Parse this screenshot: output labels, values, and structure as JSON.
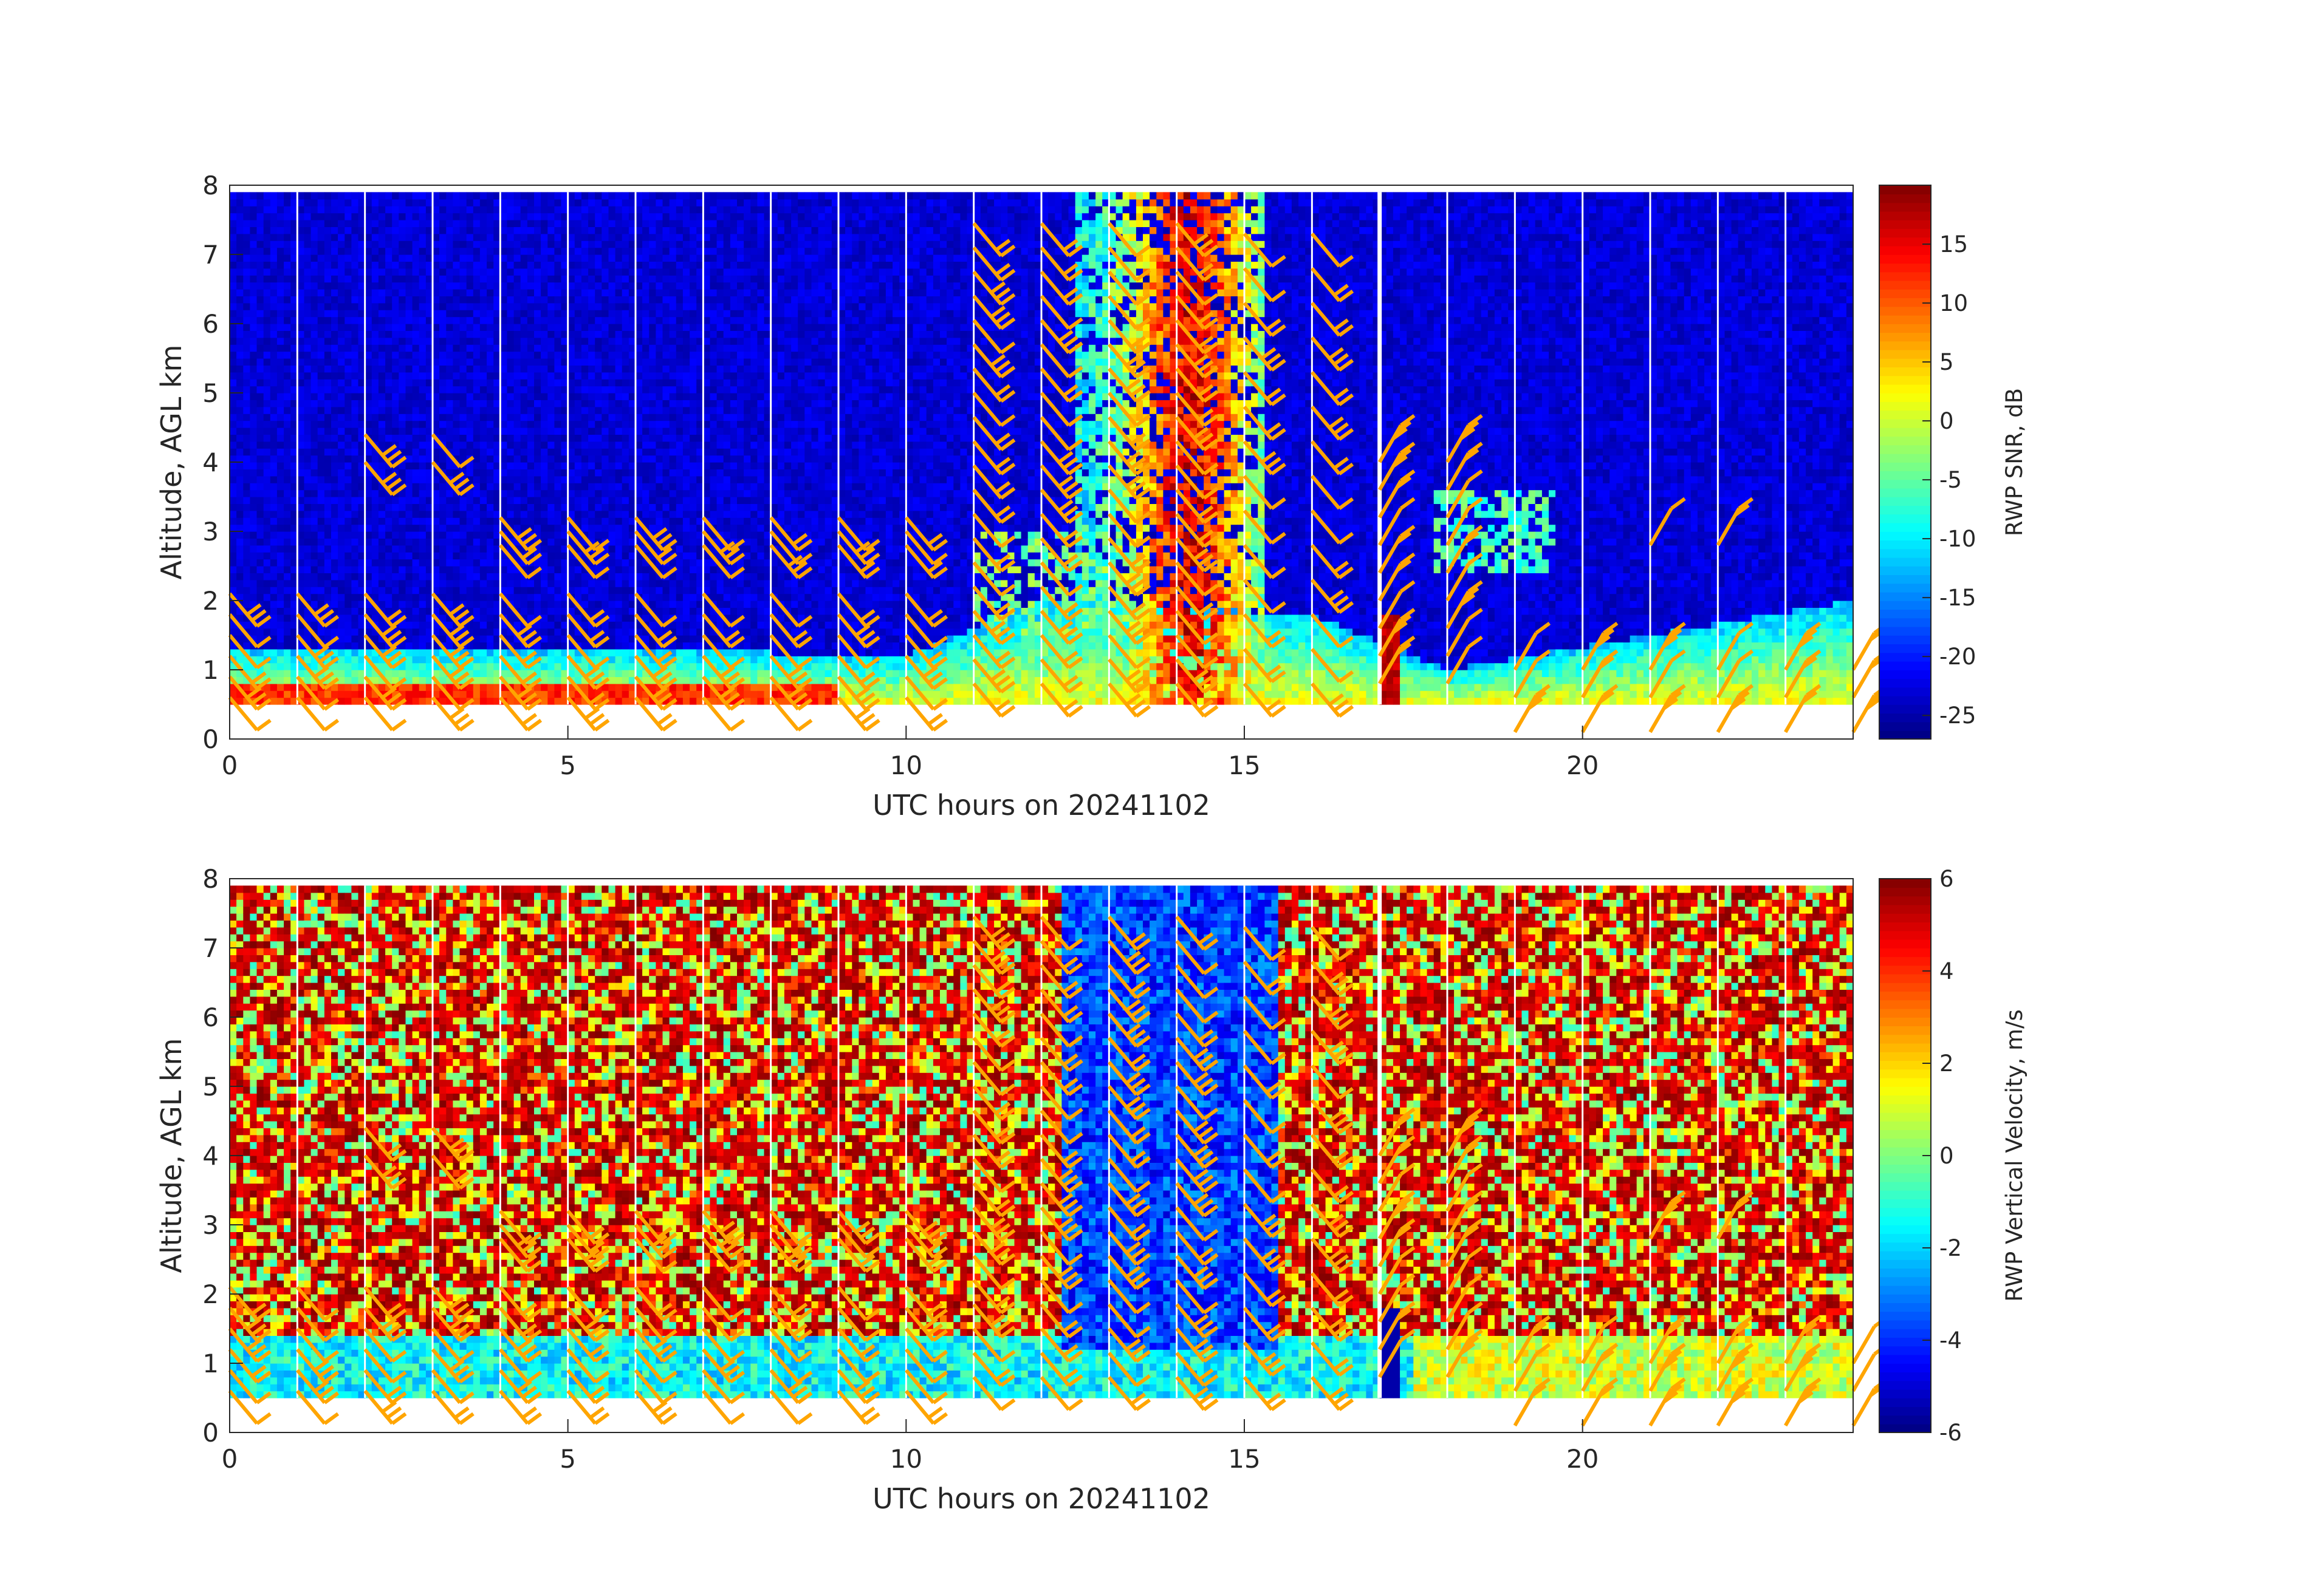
{
  "chart_data": [
    {
      "type": "heatmap",
      "title": "",
      "xlabel": "UTC hours on 20241102",
      "ylabel": "Altitude, AGL km",
      "xlim": [
        0,
        24
      ],
      "ylim": [
        0,
        8
      ],
      "x_ticks": [
        0,
        5,
        10,
        15,
        20
      ],
      "y_ticks": [
        0,
        1,
        2,
        3,
        4,
        5,
        6,
        7,
        8
      ],
      "x_tick_labels": [
        "0",
        "5",
        "10",
        "15",
        "20"
      ],
      "y_tick_labels": [
        "0",
        "1",
        "2",
        "3",
        "4",
        "5",
        "6",
        "7",
        "8"
      ],
      "colormap": "jet",
      "data_altitude_range_km": [
        0.5,
        7.9
      ],
      "colorbar": {
        "label": "RWP SNR, dB",
        "range": [
          -27,
          20
        ],
        "ticks": [
          -25,
          -20,
          -15,
          -10,
          -5,
          0,
          5,
          10,
          15
        ],
        "tick_labels": [
          "-25",
          "-20",
          "-15",
          "-10",
          "-5",
          "0",
          "5",
          "10",
          "15"
        ]
      },
      "description_features": {
        "background_db": -23,
        "boundary_layer_top_km": [
          [
            0,
            1.3
          ],
          [
            6,
            1.3
          ],
          [
            10,
            1.2
          ],
          [
            12,
            2.0
          ],
          [
            16,
            1.8
          ],
          [
            18,
            1.0
          ],
          [
            24,
            2.0
          ]
        ],
        "precip_core_hours": [
          12.5,
          15.3
        ],
        "precip_core_peak_db": 15
      }
    },
    {
      "type": "heatmap",
      "title": "",
      "xlabel": "UTC hours on 20241102",
      "ylabel": "Altitude, AGL km",
      "xlim": [
        0,
        24
      ],
      "ylim": [
        0,
        8
      ],
      "x_ticks": [
        0,
        5,
        10,
        15,
        20
      ],
      "y_ticks": [
        0,
        1,
        2,
        3,
        4,
        5,
        6,
        7,
        8
      ],
      "x_tick_labels": [
        "0",
        "5",
        "10",
        "15",
        "20"
      ],
      "y_tick_labels": [
        "0",
        "1",
        "2",
        "3",
        "4",
        "5",
        "6",
        "7",
        "8"
      ],
      "colormap": "jet",
      "data_altitude_range_km": [
        0.5,
        7.9
      ],
      "colorbar": {
        "label": "RWP Vertical Velocity, m/s",
        "range": [
          -6,
          6
        ],
        "ticks": [
          -6,
          -4,
          -2,
          0,
          2,
          4,
          6
        ],
        "tick_labels": [
          "-6",
          "-4",
          "-2",
          "0",
          "2",
          "4",
          "6"
        ]
      },
      "description_features": {
        "noise_region_above_km": 1.4,
        "boundary_layer_velocity_ms": -1.5,
        "precip_fall_velocity_ms": -3.5
      }
    }
  ],
  "wind_barbs": {
    "color": "#ffa500",
    "note": "Orange wind barbs overlaid on both panels, plotted roughly hourly at each altitude level",
    "hours": [
      0,
      1,
      2,
      3,
      4,
      5,
      6,
      7,
      8,
      9,
      10,
      11,
      12,
      13,
      14,
      15,
      16,
      17,
      18,
      19,
      20,
      21,
      22,
      23,
      24
    ]
  },
  "gap_lines_hours": [
    1,
    2,
    3,
    4,
    5,
    6,
    7,
    8,
    9,
    10,
    11,
    12,
    13,
    14,
    15,
    16,
    17,
    18,
    19,
    20,
    21,
    22,
    23
  ]
}
